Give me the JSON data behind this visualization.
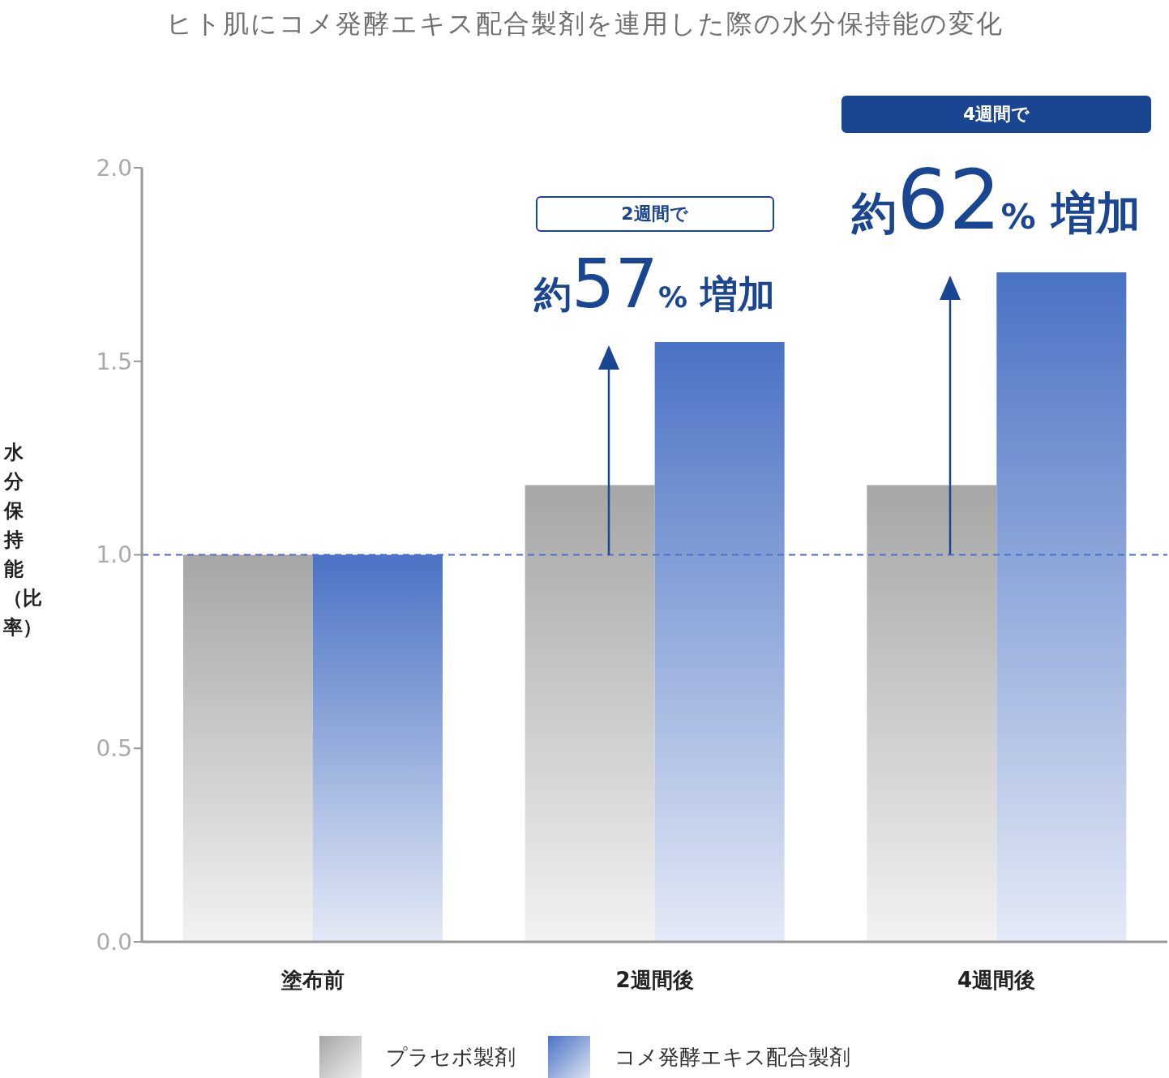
{
  "chart_data": {
    "type": "bar",
    "title": "ヒト肌にコメ発酵エキス配合製剤を連用した際の水分保持能の変化",
    "ylabel": "水分保持能（比率）",
    "categories": [
      "塗布前",
      "2週間後",
      "4週間後"
    ],
    "series": [
      {
        "name": "プラセボ製剤",
        "color": "#a6a6a6",
        "values": [
          1.0,
          1.18,
          1.18
        ]
      },
      {
        "name": "コメ発酵エキス配合製剤",
        "color": "#4a72c4",
        "values": [
          1.0,
          1.55,
          1.73
        ]
      }
    ],
    "ylim": [
      0,
      2
    ],
    "yticks": [
      {
        "value": 0,
        "label": "0.0"
      },
      {
        "value": 0.5,
        "label": "0.5"
      },
      {
        "value": 1,
        "label": "1.0"
      },
      {
        "value": 1.5,
        "label": "1.5"
      },
      {
        "value": 2,
        "label": "2.0"
      }
    ],
    "grid": false,
    "legend": "bottom",
    "ref_lines": [
      {
        "axis": "y",
        "value": 1.0,
        "color": "#4a72c4",
        "line_style": "dashed"
      }
    ],
    "annotations": [
      "2週間で",
      {
        "text": "約57% 増加",
        "x": "2週間後",
        "y": 1.55
      },
      "4週間で",
      {
        "text": "約62% 増加",
        "x": "4週間後",
        "y": 1.73
      }
    ]
  }
}
